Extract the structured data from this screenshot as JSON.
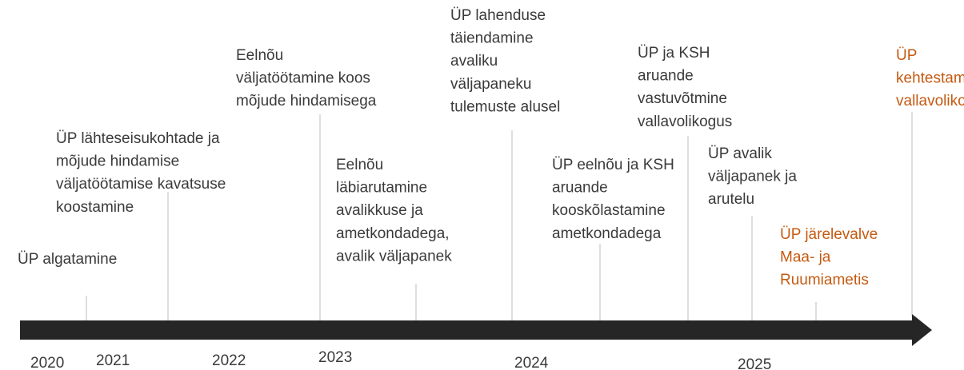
{
  "events": [
    {
      "lines": [
        "ÜP algatamine"
      ]
    },
    {
      "lines": [
        "ÜP lähteseisukohtade ja",
        "mõjude hindamise",
        "väljatöötamise kavatsuse",
        "koostamine"
      ]
    },
    {
      "lines": [
        "Eelnõu",
        "väljatöötamine koos",
        "mõjude hindamisega"
      ]
    },
    {
      "lines": [
        "Eelnõu",
        "läbiarutamine",
        "avalikkuse ja",
        "ametkondadega,",
        "avalik väljapanek"
      ]
    },
    {
      "lines": [
        "ÜP lahenduse",
        "täiendamine",
        "avaliku",
        "väljapaneku",
        "tulemuste alusel"
      ]
    },
    {
      "lines": [
        "ÜP eelnõu ja KSH",
        "aruande",
        "kooskõlastamine",
        "ametkondadega"
      ]
    },
    {
      "lines": [
        "ÜP ja KSH",
        "aruande",
        "vastuvõtmine",
        "vallavolikogus"
      ]
    },
    {
      "lines": [
        "ÜP avalik",
        "väljapanek ja",
        "arutelu"
      ]
    },
    {
      "lines": [
        "ÜP järelevalve",
        "Maa- ja",
        "Ruumiametis"
      ]
    },
    {
      "lines": [
        "ÜP",
        "kehtestamine",
        "vallavolikogus"
      ]
    }
  ],
  "years": [
    "2020",
    "2021",
    "2022",
    "2023",
    "2024",
    "2025"
  ]
}
